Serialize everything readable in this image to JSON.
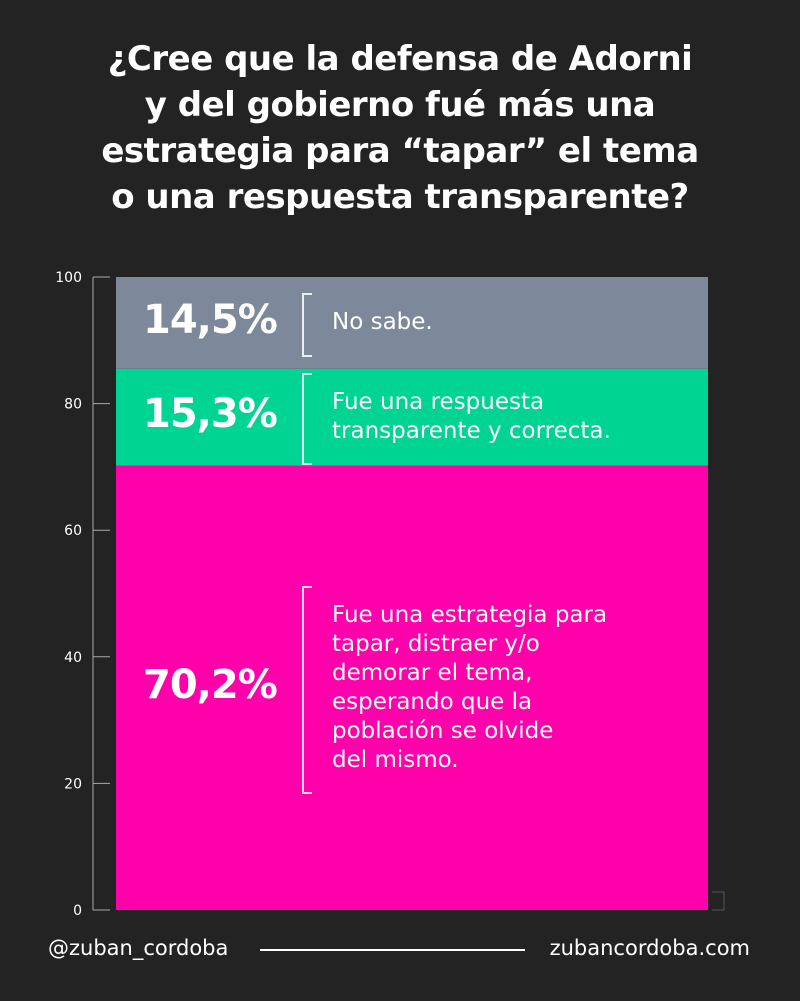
{
  "chart_data": {
    "type": "bar",
    "stacked": true,
    "title": "¿Cree que la defensa de Adorni\ny del gobierno fué más una\nestrategia para “tapar” el tema\no una respuesta transparente?",
    "ylim": [
      0,
      100
    ],
    "yticks": [
      "0",
      "20",
      "40",
      "60",
      "80",
      "100"
    ],
    "grid": false,
    "series": [
      {
        "label": "70,2%",
        "value": 70.2,
        "description": "Fue una estrategia para\ntapar, distraer y/o\ndemorar el tema,\nesperando que la\npoblación se olvide\ndel mismo.",
        "color": "#ff00aa"
      },
      {
        "label": "15,3%",
        "value": 15.3,
        "description": "Fue una respuesta\ntransparente y correcta.",
        "color": "#00d492"
      },
      {
        "label": "14,5%",
        "value": 14.5,
        "description": "No sabe.",
        "color": "#7e889b"
      }
    ]
  },
  "footer": {
    "handle": "@zuban_cordoba",
    "website": "zubancordoba.com"
  }
}
